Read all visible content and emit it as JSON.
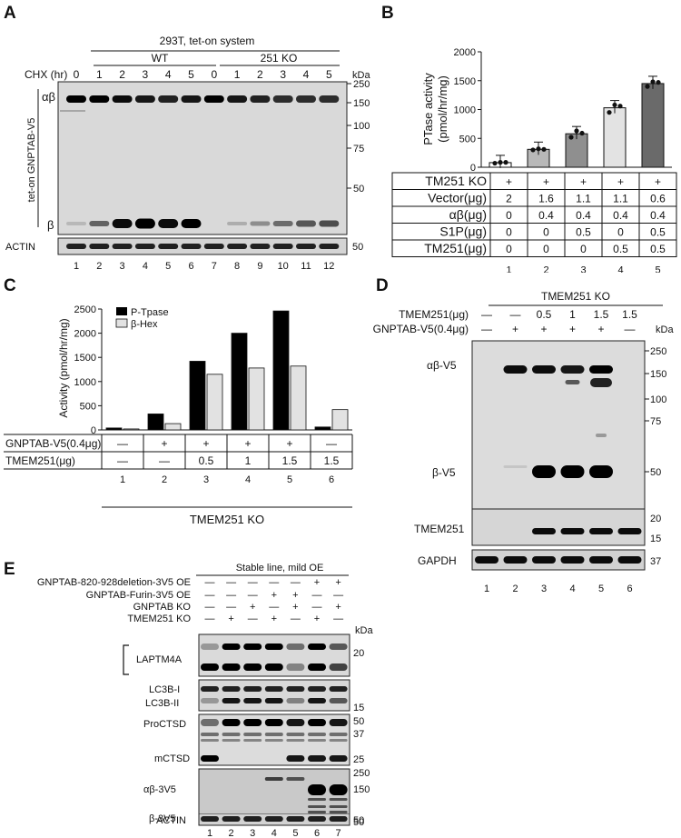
{
  "panel_labels": [
    "A",
    "B",
    "C",
    "D",
    "E"
  ],
  "panelA": {
    "system": "293T, tet-on system",
    "group_wt": "WT",
    "group_ko": "251 KO",
    "row_label": "CHX (hr)",
    "times": [
      "0",
      "1",
      "2",
      "3",
      "4",
      "5",
      "0",
      "1",
      "2",
      "3",
      "4",
      "5"
    ],
    "kda": "kDa",
    "markers": [
      "250",
      "150",
      "100",
      "75",
      "50"
    ],
    "actin_marker": "50",
    "side_label": "tet-on GNPTAB-V5",
    "band_ab": "αβ",
    "band_b": "β",
    "actin": "ACTIN",
    "lanes": [
      "1",
      "2",
      "3",
      "4",
      "5",
      "6",
      "7",
      "8",
      "9",
      "10",
      "11",
      "12"
    ]
  },
  "panelB": {
    "ylabel_1": "PTase activity",
    "ylabel_2": "(pmol/hr/mg)",
    "table": [
      {
        "label": "TM251 KO",
        "values": [
          "+",
          "+",
          "+",
          "+",
          "+"
        ]
      },
      {
        "label": "Vector(μg)",
        "values": [
          "2",
          "1.6",
          "1.1",
          "1.1",
          "0.6"
        ]
      },
      {
        "label": "αβ(μg)",
        "values": [
          "0",
          "0.4",
          "0.4",
          "0.4",
          "0.4"
        ]
      },
      {
        "label": "S1P(μg)",
        "values": [
          "0",
          "0",
          "0.5",
          "0",
          "0.5"
        ]
      },
      {
        "label": "TM251(μg)",
        "values": [
          "0",
          "0",
          "0",
          "0.5",
          "0.5"
        ]
      }
    ],
    "lanes": [
      "1",
      "2",
      "3",
      "4",
      "5"
    ]
  },
  "panelC": {
    "ylabel": "Activity (pmol/hr/mg)",
    "legend": [
      "P-Tpase",
      "β-Hex"
    ],
    "table": [
      {
        "label": "GNPTAB-V5(0.4μg)",
        "values": [
          "—",
          "+",
          "+",
          "+",
          "+",
          "—"
        ]
      },
      {
        "label": "TMEM251(μg)",
        "values": [
          "—",
          "—",
          "0.5",
          "1",
          "1.5",
          "1.5"
        ]
      }
    ],
    "lanes": [
      "1",
      "2",
      "3",
      "4",
      "5",
      "6"
    ],
    "footer": "TMEM251 KO"
  },
  "panelD": {
    "header": "TMEM251 KO",
    "row1_label": "TMEM251(μg)",
    "row1": [
      "—",
      "—",
      "0.5",
      "1",
      "1.5",
      "1.5"
    ],
    "row2_label": "GNPTAB-V5(0.4μg)",
    "row2": [
      "—",
      "+",
      "+",
      "+",
      "+",
      "—"
    ],
    "kda": "kDa",
    "markers_top": [
      "250",
      "150",
      "100",
      "75",
      "50"
    ],
    "band_ab": "αβ-V5",
    "band_b": "β-V5",
    "tmem_label": "TMEM251",
    "tmem_markers": [
      "20",
      "15"
    ],
    "gapdh_label": "GAPDH",
    "gapdh_marker": "37",
    "lanes": [
      "1",
      "2",
      "3",
      "4",
      "5",
      "6"
    ]
  },
  "panelE": {
    "header": "Stable line, mild OE",
    "rows": [
      {
        "label": "GNPTAB-820-928deletion-3V5 OE",
        "values": [
          "—",
          "—",
          "—",
          "—",
          "—",
          "+",
          "+"
        ]
      },
      {
        "label": "GNPTAB-Furin-3V5 OE",
        "values": [
          "—",
          "—",
          "—",
          "+",
          "+",
          "—",
          "—"
        ]
      },
      {
        "label": "GNPTAB KO",
        "values": [
          "—",
          "—",
          "+",
          "—",
          "+",
          "—",
          "+"
        ]
      },
      {
        "label": "TMEM251 KO",
        "values": [
          "—",
          "+",
          "—",
          "+",
          "—",
          "+",
          "—"
        ]
      }
    ],
    "kda": "kDa",
    "laptm4a": "LAPTM4A",
    "laptm4a_marker": "20",
    "lc3b_1": "LC3B-I",
    "lc3b_2": "LC3B-II",
    "lc3b_marker": "15",
    "ctsd_pro": "ProCTSD",
    "ctsd_m": "mCTSD",
    "ctsd_markers": [
      "50",
      "37",
      "25"
    ],
    "v5_ab": "αβ-3V5",
    "v5_b": "β-3V5",
    "v5_markers": [
      "250",
      "150",
      "50"
    ],
    "actin": "ACTIN",
    "actin_marker": "50",
    "lanes": [
      "1",
      "2",
      "3",
      "4",
      "5",
      "6",
      "7"
    ]
  },
  "chart_data": [
    {
      "type": "bar",
      "panel": "B",
      "categories": [
        "1",
        "2",
        "3",
        "4",
        "5"
      ],
      "values": [
        80,
        310,
        580,
        1030,
        1450
      ],
      "points": [
        [
          70,
          85,
          85
        ],
        [
          300,
          320,
          310
        ],
        [
          520,
          630,
          590
        ],
        [
          950,
          1080,
          1060
        ],
        [
          1400,
          1480,
          1470
        ]
      ],
      "ylabel": "PTase activity (pmol/hr/mg)",
      "ylim": [
        0,
        2000
      ],
      "yticks": [
        "0",
        "500",
        "1000",
        "1500",
        "2000"
      ],
      "colors": [
        "#ffffff",
        "#b8b8b8",
        "#8f8f8f",
        "#e3e3e3",
        "#6a6a6a"
      ]
    },
    {
      "type": "bar",
      "panel": "C",
      "categories": [
        "1",
        "2",
        "3",
        "4",
        "5",
        "6"
      ],
      "series": [
        {
          "name": "P-Tpase",
          "values": [
            40,
            330,
            1420,
            2000,
            2460,
            60
          ],
          "color": "#000000"
        },
        {
          "name": "β-Hex",
          "values": [
            20,
            130,
            1150,
            1280,
            1320,
            420
          ],
          "color": "#e2e2e2"
        }
      ],
      "ylabel": "Activity (pmol/hr/mg)",
      "ylim": [
        0,
        2500
      ],
      "yticks": [
        "0",
        "500",
        "1000",
        "1500",
        "2000",
        "2500"
      ]
    }
  ]
}
